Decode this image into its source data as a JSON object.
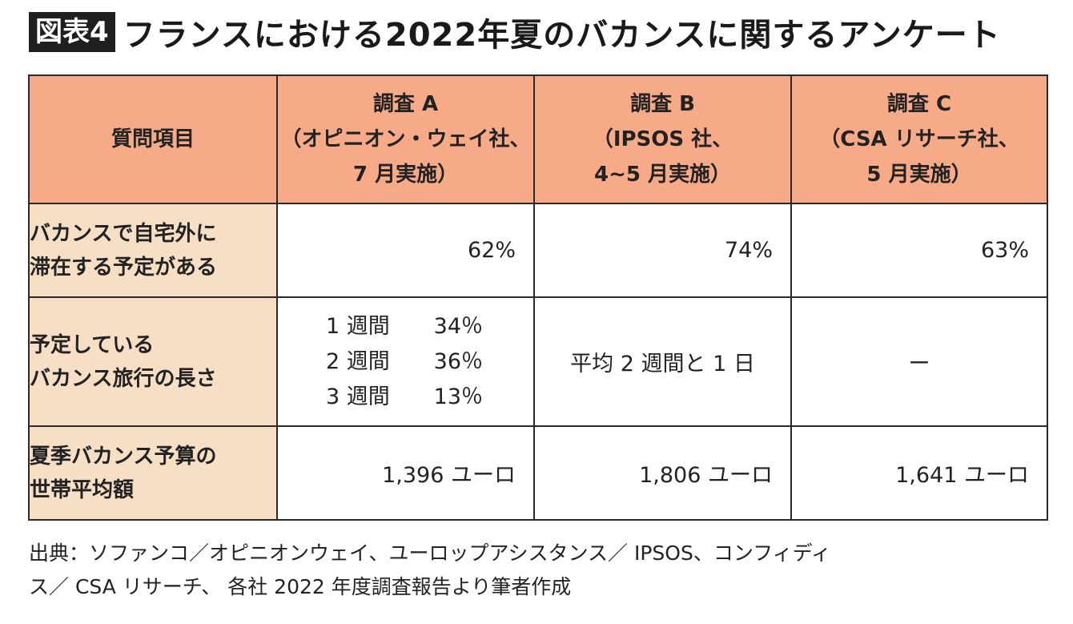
{
  "title": {
    "badge": "図表4",
    "text": "フランスにおける2022年夏のバカンスに関するアンケート"
  },
  "table": {
    "headers": {
      "question": "質問項目",
      "survey_a": [
        "調査 A",
        "（オピニオン・ウェイ社、",
        "7 月実施）"
      ],
      "survey_b": [
        "調査 B",
        "（IPSOS 社、",
        "4~5 月実施）"
      ],
      "survey_c": [
        "調査 C",
        "（CSA リサーチ社、",
        "5 月実施）"
      ]
    },
    "rows": {
      "stay": {
        "question": [
          "バカンスで自宅外に",
          "滞在する予定がある"
        ],
        "a": "62%",
        "b": "74%",
        "c": "63%"
      },
      "length": {
        "question": [
          "予定している",
          "バカンス旅行の長さ"
        ],
        "a": [
          {
            "period": "1 週間",
            "pct": "34％"
          },
          {
            "period": "2 週間",
            "pct": "36％"
          },
          {
            "period": "3 週間",
            "pct": "13％"
          }
        ],
        "b": "平均 2 週間と 1 日",
        "c": "ー"
      },
      "budget": {
        "question": [
          "夏季バカンス予算の",
          "世帯平均額"
        ],
        "a": "1,396 ユーロ",
        "b": "1,806 ユーロ",
        "c": "1,641 ユーロ"
      }
    }
  },
  "footer": {
    "lines": [
      "出典：ソファンコ／オピニオンウェイ、ユーロップアシスタンス／ IPSOS、コンフィディ",
      "ス／ CSA リサーチ、 各社 2022 年度調査報告より筆者作成"
    ]
  },
  "colors": {
    "header_bg": "#f6aa87",
    "question_bg": "#f7dfc6",
    "badge_bg": "#1f1f1f"
  }
}
